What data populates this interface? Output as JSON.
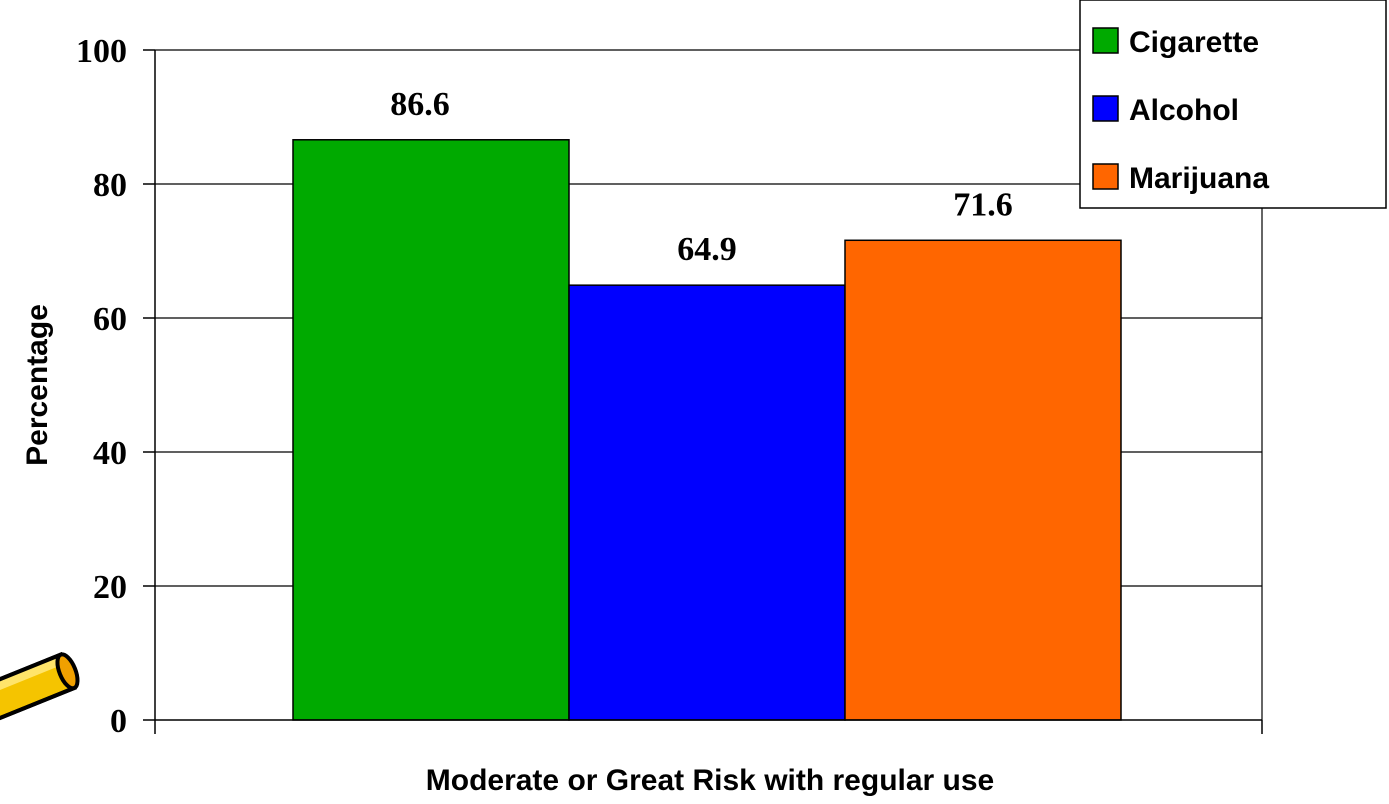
{
  "chart_data": {
    "type": "bar",
    "categories": [
      "Moderate or Great Risk with regular use"
    ],
    "series": [
      {
        "name": "Cigarette",
        "values": [
          86.6
        ],
        "color": "#00AA00"
      },
      {
        "name": "Alcohol",
        "values": [
          64.9
        ],
        "color": "#0000FF"
      },
      {
        "name": "Marijuana",
        "values": [
          71.6
        ],
        "color": "#FF6600"
      }
    ],
    "data_labels": [
      "86.6",
      "64.9",
      "71.6"
    ],
    "title": "",
    "xlabel": "Moderate or Great Risk with regular use",
    "ylabel": "Percentage",
    "ylim": [
      0,
      100
    ],
    "yticks": [
      "0",
      "20",
      "40",
      "60",
      "80",
      "100"
    ],
    "grid": true,
    "legend_position": "top-right"
  },
  "decoration": {
    "icon": "pencil-icon"
  }
}
